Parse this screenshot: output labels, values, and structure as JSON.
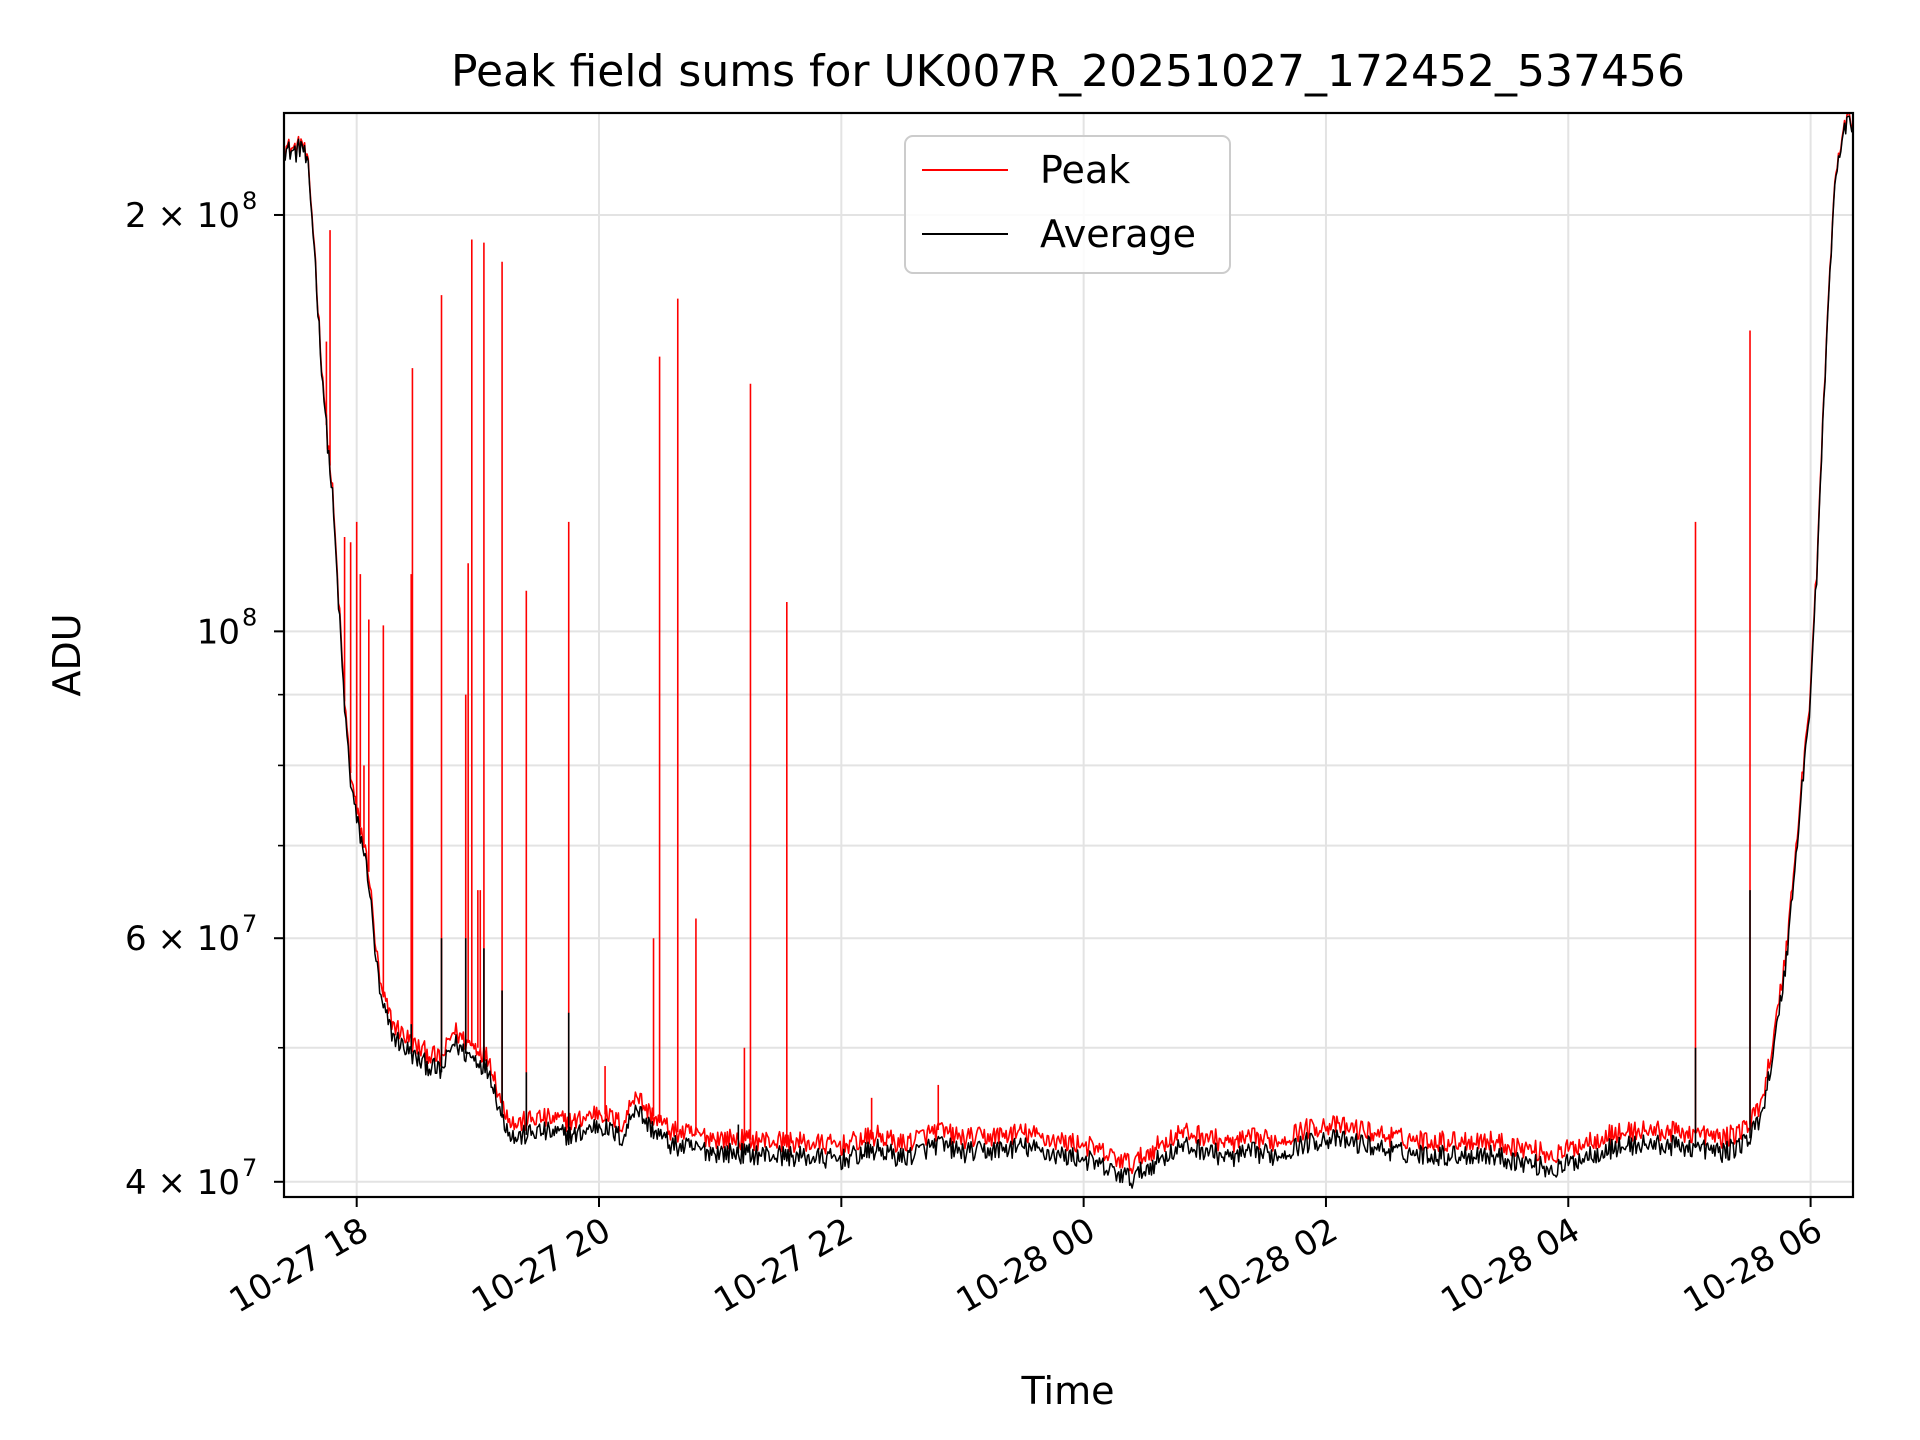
{
  "chart_data": {
    "type": "line",
    "title": "Peak field sums for UK007R_20251027_172452_537456",
    "xlabel": "Time",
    "ylabel": "ADU",
    "yscale": "log",
    "ylim": [
      39000000,
      237000000
    ],
    "xlim_hours": [
      -0.6,
      12.35
    ],
    "x_unit": "hours since 2025-10-27 18:00",
    "grid": true,
    "legend_position": "top-center",
    "x_ticks": [
      {
        "value": 0,
        "label": "10-27 18"
      },
      {
        "value": 2,
        "label": "10-27 20"
      },
      {
        "value": 4,
        "label": "10-27 22"
      },
      {
        "value": 6,
        "label": "10-28 00"
      },
      {
        "value": 8,
        "label": "10-28 02"
      },
      {
        "value": 10,
        "label": "10-28 04"
      },
      {
        "value": 12,
        "label": "10-28 06"
      }
    ],
    "y_ticks": [
      {
        "value": 40000000,
        "base": "4 × 10",
        "exp": "7"
      },
      {
        "value": 60000000,
        "base": "6 × 10",
        "exp": "7"
      },
      {
        "value": 100000000,
        "base": "10",
        "exp": "8"
      },
      {
        "value": 200000000,
        "base": "2 × 10",
        "exp": "8"
      }
    ],
    "y_minor_ticks": [
      50000000,
      70000000,
      80000000,
      90000000
    ],
    "series": [
      {
        "name": "Average",
        "color": "#000000",
        "points": [
          [
            -0.6,
            223000000
          ],
          [
            -0.5,
            222000000
          ],
          [
            -0.45,
            225000000
          ],
          [
            -0.4,
            215000000
          ],
          [
            -0.35,
            190000000
          ],
          [
            -0.3,
            160000000
          ],
          [
            -0.25,
            140000000
          ],
          [
            -0.2,
            125000000
          ],
          [
            -0.15,
            105000000
          ],
          [
            -0.1,
            88000000
          ],
          [
            -0.05,
            78000000
          ],
          [
            0.0,
            73000000
          ],
          [
            0.05,
            70000000
          ],
          [
            0.1,
            66000000
          ],
          [
            0.15,
            59000000
          ],
          [
            0.2,
            54000000
          ],
          [
            0.3,
            51000000
          ],
          [
            0.5,
            49000000
          ],
          [
            0.7,
            48000000
          ],
          [
            0.6,
            48500000
          ],
          [
            0.8,
            50500000
          ],
          [
            0.9,
            49500000
          ],
          [
            1.0,
            49000000
          ],
          [
            1.1,
            48000000
          ],
          [
            1.2,
            44500000
          ],
          [
            1.3,
            43000000
          ],
          [
            1.5,
            43500000
          ],
          [
            1.8,
            43200000
          ],
          [
            2.0,
            44000000
          ],
          [
            2.2,
            43000000
          ],
          [
            2.3,
            45500000
          ],
          [
            2.4,
            44000000
          ],
          [
            2.6,
            42500000
          ],
          [
            3.0,
            42000000
          ],
          [
            3.5,
            41800000
          ],
          [
            4.0,
            41500000
          ],
          [
            4.3,
            42200000
          ],
          [
            4.5,
            41600000
          ],
          [
            4.8,
            42600000
          ],
          [
            5.0,
            42000000
          ],
          [
            5.2,
            42100000
          ],
          [
            5.5,
            42400000
          ],
          [
            5.8,
            41800000
          ],
          [
            6.0,
            41600000
          ],
          [
            6.2,
            40800000
          ],
          [
            6.4,
            40200000
          ],
          [
            6.6,
            41400000
          ],
          [
            6.8,
            42400000
          ],
          [
            7.0,
            42200000
          ],
          [
            7.2,
            41600000
          ],
          [
            7.4,
            42000000
          ],
          [
            7.6,
            41800000
          ],
          [
            7.8,
            42600000
          ],
          [
            8.0,
            43000000
          ],
          [
            8.3,
            42600000
          ],
          [
            8.6,
            42000000
          ],
          [
            9.0,
            41800000
          ],
          [
            9.3,
            41900000
          ],
          [
            9.6,
            41400000
          ],
          [
            9.9,
            40800000
          ],
          [
            10.1,
            41600000
          ],
          [
            10.3,
            42200000
          ],
          [
            10.6,
            42600000
          ],
          [
            11.0,
            42400000
          ],
          [
            11.3,
            42000000
          ],
          [
            11.5,
            43000000
          ],
          [
            11.6,
            45000000
          ],
          [
            11.7,
            50000000
          ],
          [
            11.8,
            58000000
          ],
          [
            11.9,
            72000000
          ],
          [
            12.0,
            90000000
          ],
          [
            12.05,
            110000000
          ],
          [
            12.1,
            140000000
          ],
          [
            12.15,
            175000000
          ],
          [
            12.2,
            210000000
          ],
          [
            12.25,
            225000000
          ],
          [
            12.3,
            232000000
          ],
          [
            12.35,
            234000000
          ]
        ],
        "spikes": [
          [
            0.45,
            52000000
          ],
          [
            0.7,
            60000000
          ],
          [
            0.9,
            60000000
          ],
          [
            1.05,
            59000000
          ],
          [
            1.2,
            55000000
          ],
          [
            1.4,
            48000000
          ],
          [
            1.75,
            53000000
          ],
          [
            3.15,
            44000000
          ],
          [
            6.3,
            40000000
          ],
          [
            11.05,
            50000000
          ],
          [
            11.5,
            65000000
          ]
        ]
      },
      {
        "name": "Peak",
        "color": "#ff0000",
        "points": [
          [
            -0.6,
            224000000
          ],
          [
            -0.5,
            223000000
          ],
          [
            -0.45,
            226000000
          ],
          [
            -0.4,
            216000000
          ],
          [
            -0.35,
            191000000
          ],
          [
            -0.3,
            161000000
          ],
          [
            -0.25,
            141000000
          ],
          [
            -0.2,
            126000000
          ],
          [
            -0.15,
            106000000
          ],
          [
            -0.1,
            89000000
          ],
          [
            -0.05,
            79000000
          ],
          [
            0.0,
            74000000
          ],
          [
            0.05,
            71000000
          ],
          [
            0.1,
            67000000
          ],
          [
            0.15,
            60000000
          ],
          [
            0.2,
            55000000
          ],
          [
            0.3,
            52000000
          ],
          [
            0.5,
            50000000
          ],
          [
            0.7,
            49000000
          ],
          [
            0.6,
            49500000
          ],
          [
            0.8,
            51500000
          ],
          [
            0.9,
            50500000
          ],
          [
            1.0,
            50000000
          ],
          [
            1.1,
            49000000
          ],
          [
            1.2,
            45500000
          ],
          [
            1.3,
            44000000
          ],
          [
            1.5,
            44500000
          ],
          [
            1.8,
            44200000
          ],
          [
            2.0,
            45000000
          ],
          [
            2.2,
            44000000
          ],
          [
            2.3,
            46500000
          ],
          [
            2.4,
            45000000
          ],
          [
            2.6,
            43500000
          ],
          [
            3.0,
            43000000
          ],
          [
            3.5,
            42800000
          ],
          [
            4.0,
            42500000
          ],
          [
            4.3,
            43200000
          ],
          [
            4.5,
            42600000
          ],
          [
            4.8,
            43600000
          ],
          [
            5.0,
            43000000
          ],
          [
            5.2,
            43100000
          ],
          [
            5.5,
            43400000
          ],
          [
            5.8,
            42800000
          ],
          [
            6.0,
            42600000
          ],
          [
            6.2,
            41800000
          ],
          [
            6.4,
            41200000
          ],
          [
            6.6,
            42400000
          ],
          [
            6.8,
            43400000
          ],
          [
            7.0,
            43200000
          ],
          [
            7.2,
            42600000
          ],
          [
            7.4,
            43000000
          ],
          [
            7.6,
            42800000
          ],
          [
            7.8,
            43600000
          ],
          [
            8.0,
            44000000
          ],
          [
            8.3,
            43600000
          ],
          [
            8.6,
            43000000
          ],
          [
            9.0,
            42800000
          ],
          [
            9.3,
            42900000
          ],
          [
            9.6,
            42400000
          ],
          [
            9.9,
            41800000
          ],
          [
            10.1,
            42600000
          ],
          [
            10.3,
            43200000
          ],
          [
            10.6,
            43600000
          ],
          [
            11.0,
            43400000
          ],
          [
            11.3,
            43000000
          ],
          [
            11.5,
            44000000
          ],
          [
            11.6,
            46000000
          ],
          [
            11.7,
            51000000
          ],
          [
            11.8,
            59000000
          ],
          [
            11.9,
            73000000
          ],
          [
            12.0,
            91000000
          ],
          [
            12.05,
            111000000
          ],
          [
            12.1,
            141000000
          ],
          [
            12.15,
            176000000
          ],
          [
            12.2,
            211000000
          ],
          [
            12.25,
            226000000
          ],
          [
            12.3,
            233000000
          ],
          [
            12.35,
            235000000
          ]
        ],
        "spikes": [
          [
            -0.25,
            162000000
          ],
          [
            -0.22,
            195000000
          ],
          [
            -0.1,
            117000000
          ],
          [
            -0.05,
            116000000
          ],
          [
            0.0,
            120000000
          ],
          [
            0.03,
            110000000
          ],
          [
            0.06,
            80000000
          ],
          [
            0.1,
            102000000
          ],
          [
            0.22,
            101000000
          ],
          [
            0.45,
            110000000
          ],
          [
            0.46,
            155000000
          ],
          [
            0.7,
            175000000
          ],
          [
            0.9,
            90000000
          ],
          [
            0.92,
            112000000
          ],
          [
            0.95,
            192000000
          ],
          [
            1.0,
            65000000
          ],
          [
            1.02,
            65000000
          ],
          [
            1.05,
            191000000
          ],
          [
            1.2,
            185000000
          ],
          [
            1.4,
            107000000
          ],
          [
            1.75,
            120000000
          ],
          [
            2.05,
            48500000
          ],
          [
            2.45,
            60000000
          ],
          [
            2.5,
            158000000
          ],
          [
            2.65,
            174000000
          ],
          [
            2.8,
            62000000
          ],
          [
            3.2,
            50000000
          ],
          [
            3.25,
            151000000
          ],
          [
            3.55,
            105000000
          ],
          [
            4.25,
            46000000
          ],
          [
            4.8,
            47000000
          ],
          [
            11.05,
            120000000
          ],
          [
            11.5,
            165000000
          ]
        ]
      }
    ]
  }
}
